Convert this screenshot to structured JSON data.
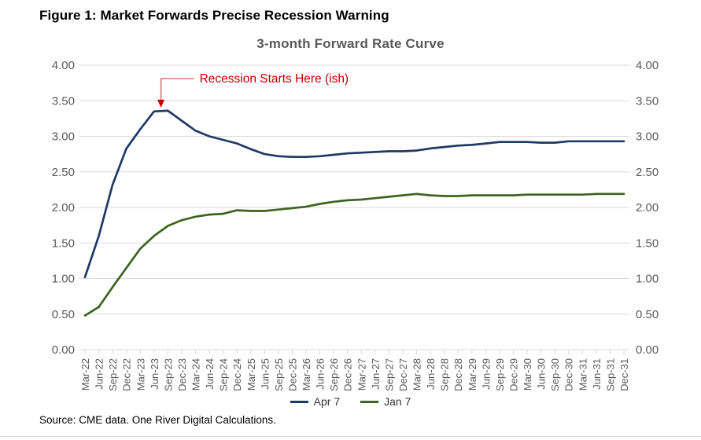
{
  "page": {
    "figure_title": "Figure 1: Market Forwards Precise Recession Warning",
    "source": "Source: CME data. One River Digital Calculations."
  },
  "chart_data": {
    "type": "line",
    "title": "3-month Forward Rate Curve",
    "xlabel": "",
    "ylabel": "",
    "ylim": [
      0,
      4
    ],
    "grid": "horizontal",
    "legend_position": "bottom-center",
    "y_axis_sides": [
      "left",
      "right"
    ],
    "yticks": [
      {
        "value": 4.0,
        "label": "4.00"
      },
      {
        "value": 3.5,
        "label": "3.50"
      },
      {
        "value": 3.0,
        "label": "3.00"
      },
      {
        "value": 2.5,
        "label": "2.50"
      },
      {
        "value": 2.0,
        "label": "2.00"
      },
      {
        "value": 1.5,
        "label": "1.50"
      },
      {
        "value": 1.0,
        "label": "1.00"
      },
      {
        "value": 0.5,
        "label": "0.50"
      },
      {
        "value": 0.0,
        "label": "0.00"
      }
    ],
    "categories": [
      "Mar-22",
      "Jun-22",
      "Sep-22",
      "Dec-22",
      "Mar-23",
      "Jun-23",
      "Sep-23",
      "Dec-23",
      "Mar-24",
      "Jun-24",
      "Sep-24",
      "Dec-24",
      "Mar-25",
      "Jun-25",
      "Sep-25",
      "Dec-25",
      "Mar-26",
      "Jun-26",
      "Sep-26",
      "Dec-26",
      "Mar-27",
      "Jun-27",
      "Sep-27",
      "Dec-27",
      "Mar-28",
      "Jun-28",
      "Sep-28",
      "Dec-28",
      "Mar-29",
      "Jun-29",
      "Sep-29",
      "Dec-29",
      "Mar-30",
      "Jun-30",
      "Sep-30",
      "Dec-30",
      "Mar-31",
      "Jun-31",
      "Sep-31",
      "Dec-31"
    ],
    "series": [
      {
        "name": "Apr 7",
        "color": "#1f3864",
        "values": [
          1.02,
          1.6,
          2.32,
          2.83,
          3.1,
          3.35,
          3.36,
          3.22,
          3.08,
          3.0,
          2.95,
          2.9,
          2.82,
          2.75,
          2.72,
          2.71,
          2.71,
          2.72,
          2.74,
          2.76,
          2.77,
          2.78,
          2.79,
          2.79,
          2.8,
          2.83,
          2.85,
          2.87,
          2.88,
          2.9,
          2.92,
          2.92,
          2.92,
          2.91,
          2.91,
          2.93,
          2.93,
          2.93,
          2.93,
          2.93
        ]
      },
      {
        "name": "Jan 7",
        "color": "#3d6321",
        "values": [
          0.48,
          0.6,
          0.88,
          1.15,
          1.42,
          1.6,
          1.74,
          1.82,
          1.87,
          1.9,
          1.91,
          1.96,
          1.95,
          1.95,
          1.97,
          1.99,
          2.01,
          2.05,
          2.08,
          2.1,
          2.11,
          2.13,
          2.15,
          2.17,
          2.19,
          2.17,
          2.16,
          2.16,
          2.17,
          2.17,
          2.17,
          2.17,
          2.18,
          2.18,
          2.18,
          2.18,
          2.18,
          2.19,
          2.19,
          2.19
        ]
      }
    ],
    "annotation": {
      "text": "Recession Starts Here (ish)",
      "target_index": 5.5,
      "target_value": 3.36,
      "text_color": "#c00000",
      "connector_color": "#cf7b7b"
    },
    "colors": {
      "grid": "#d9d9d9",
      "axis_text": "#595959"
    }
  }
}
